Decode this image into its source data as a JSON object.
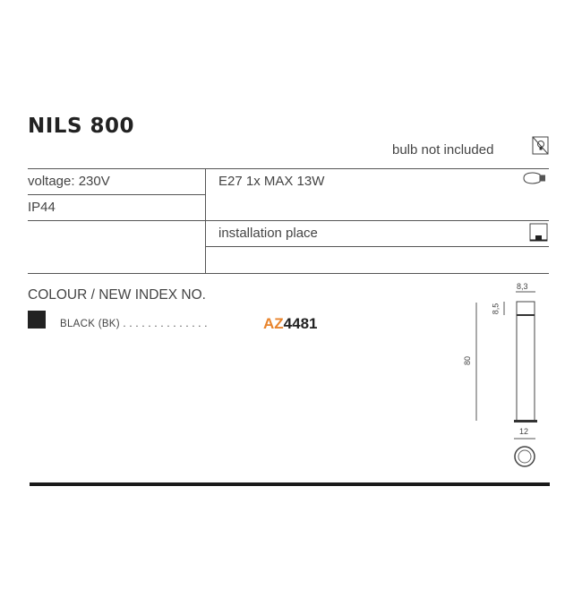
{
  "product": {
    "title": "NILS 800"
  },
  "bulb_note": {
    "label": "bulb not included",
    "icon": "no-bulb-icon"
  },
  "specs": {
    "voltage": "voltage: 230V",
    "ip": "IP44",
    "bulb": "E27 1x MAX 13W",
    "bulb_icon": "bulb-icon",
    "installation": "installation place",
    "installation_icon": "floor-installation-icon"
  },
  "colour_section": {
    "heading": "COLOUR / NEW INDEX NO.",
    "items": [
      {
        "swatch_color": "#222222",
        "name": "BLACK (BK)",
        "dots": ". . . . . . . . . . . . . .",
        "code_prefix": "AZ",
        "code_number": "4481"
      }
    ]
  },
  "dimensions": {
    "height": "80",
    "width_top": "8,3",
    "cap_height": "8,5",
    "base": "12"
  },
  "colors": {
    "accent": "#e8842c"
  }
}
